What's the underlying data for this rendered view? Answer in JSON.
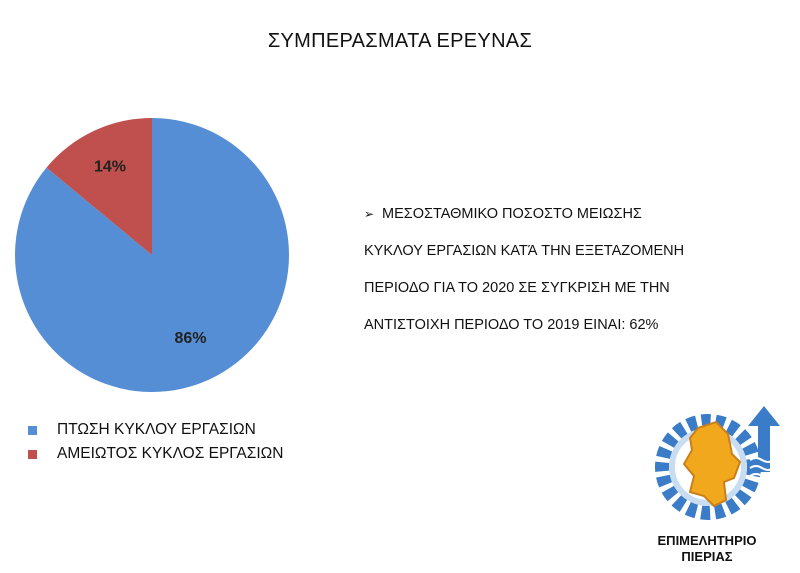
{
  "title": "ΣΥΜΠΕΡΑΣΜΑΤΑ ΕΡΕΥΝΑΣ",
  "chart_data": {
    "type": "pie",
    "slices": [
      {
        "label": "ΠΤΩΣΗ ΚΥΚΛΟΥ ΕΡΓΑΣΙΩΝ",
        "value": 86,
        "value_label": "86%",
        "color": "#558ED5"
      },
      {
        "label": "ΑΜΕΙΩΤΟΣ ΚΥΚΛΟΣ ΕΡΓΑΣΙΩΝ",
        "value": 14,
        "value_label": "14%",
        "color": "#C0504D"
      }
    ],
    "legend_position": "bottom-left"
  },
  "bullet": {
    "marker": "➢",
    "lines": [
      "ΜΕΣΟΣΤΑΘΜΙΚΟ ΠΟΣΟΣΤΟ ΜΕΙΩΣΗΣ",
      "ΚΥΚΛΟΥ ΕΡΓΑΣΙΩΝ ΚΑΤΆ ΤΗΝ ΕΞΕΤΑΖΟΜΕΝΗ",
      "ΠΕΡΙΟΔΟ ΓΙΑ ΤΟ 2020 ΣΕ ΣΥΓΚΡΙΣΗ ΜΕ ΤΗΝ",
      "ΑΝΤΙΣΤΟΙΧΗ ΠΕΡΙΟΔΟ ΤΟ 2019 ΕΙΝΑΙ:  62%"
    ]
  },
  "logo": {
    "line1": "ΕΠΙΜΕΛΗΤΗΡΙΟ",
    "line2": "ΠΙΕΡΙΑΣ",
    "icon": "chamber-logo-icon",
    "colors": {
      "blue": "#3A7CC8",
      "gold": "#F2A81D"
    }
  }
}
